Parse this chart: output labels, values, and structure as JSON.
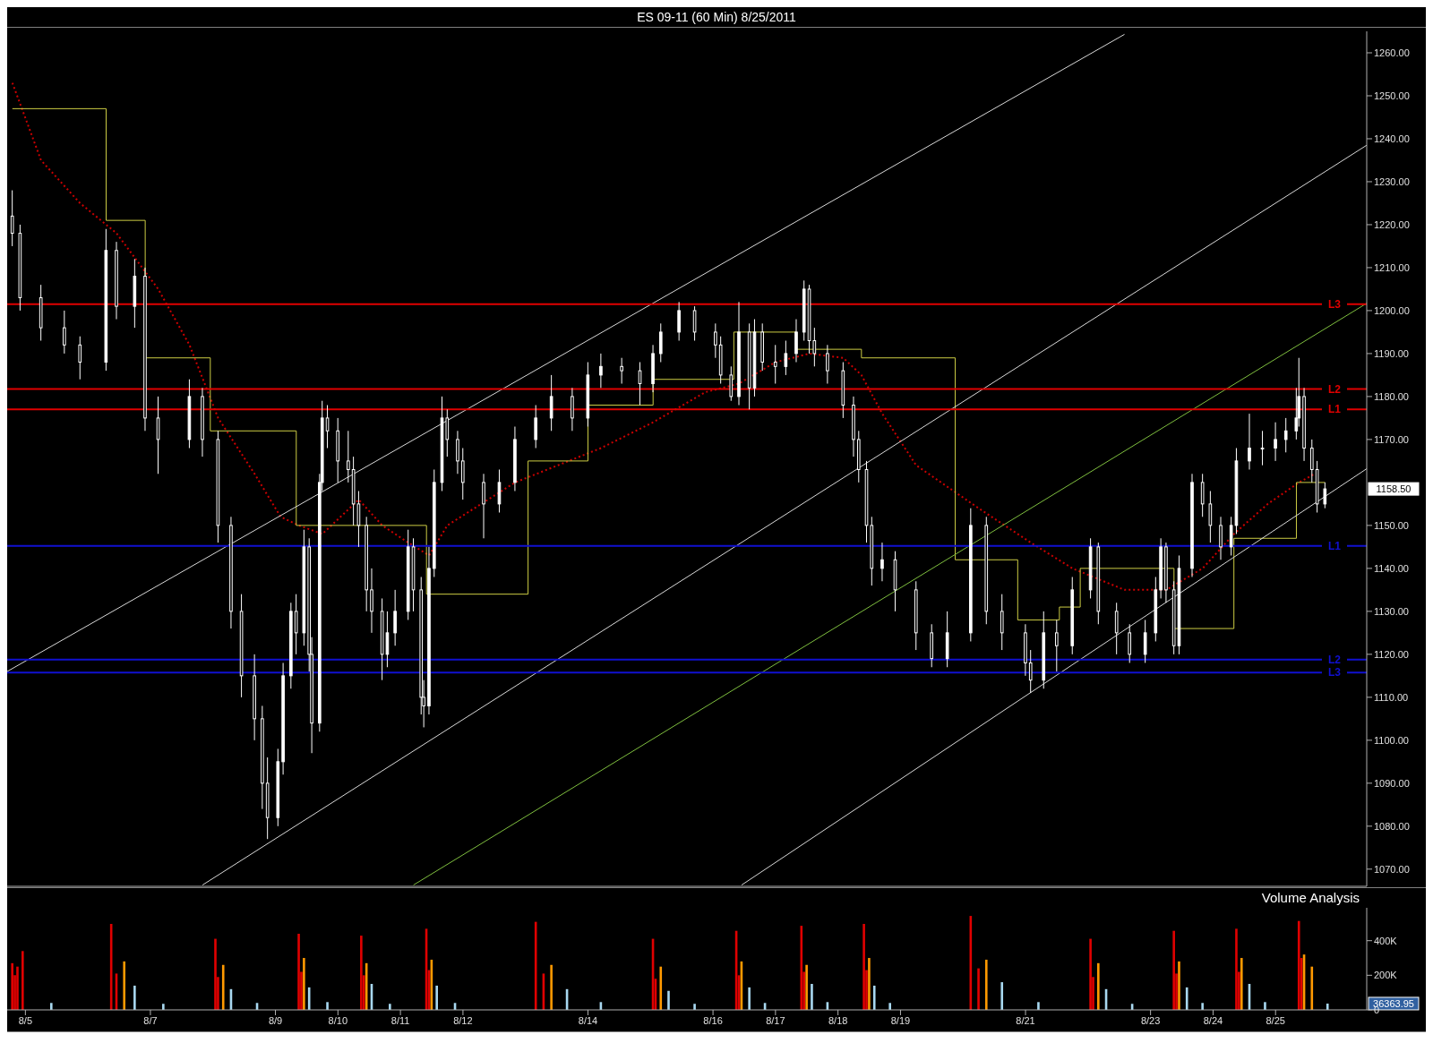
{
  "chart_data": [
    {
      "type": "candlestick",
      "title": "ES 09-11 (60 Min)  8/25/2011",
      "color": "#ffffff",
      "marker": "none",
      "tick_labels": "y",
      "x": [
        "2011-08-04T19:00",
        "2011-08-04T22:00",
        "2011-08-05T06:00",
        "2011-08-05T15:00",
        "2011-08-05T21:00",
        "2011-08-06T07:00",
        "2011-08-06T11:00",
        "2011-08-06T18:00",
        "2011-08-06T22:00",
        "2011-08-07T03:00",
        "2011-08-07T15:00",
        "2011-08-07T20:00",
        "2011-08-08T02:00",
        "2011-08-08T07:00",
        "2011-08-08T11:00",
        "2011-08-08T16:00",
        "2011-08-08T19:00",
        "2011-08-08T21:00",
        "2011-08-09T01:00",
        "2011-08-09T03:00",
        "2011-08-09T06:00",
        "2011-08-09T08:00",
        "2011-08-09T11:00",
        "2011-08-09T13:00",
        "2011-08-09T14:00",
        "2011-08-09T17:00",
        "2011-08-09T18:00",
        "2011-08-09T20:00",
        "2011-08-10T00:00",
        "2011-08-10T04:00",
        "2011-08-10T06:00",
        "2011-08-10T08:00",
        "2011-08-10T11:00",
        "2011-08-10T13:00",
        "2011-08-10T17:00",
        "2011-08-10T19:00",
        "2011-08-10T22:00",
        "2011-08-11T03:00",
        "2011-08-11T05:00",
        "2011-08-11T08:00",
        "2011-08-11T09:00",
        "2011-08-11T11:00",
        "2011-08-11T13:00",
        "2011-08-11T16:00",
        "2011-08-11T18:00",
        "2011-08-11T22:00",
        "2011-08-12T00:00",
        "2011-08-12T08:00",
        "2011-08-12T14:00",
        "2011-08-12T20:00",
        "2011-08-13T04:00",
        "2011-08-13T10:00",
        "2011-08-13T18:00",
        "2011-08-14T00:00",
        "2011-08-14T05:00",
        "2011-08-14T13:00",
        "2011-08-14T20:00",
        "2011-08-15T01:00",
        "2011-08-15T04:00",
        "2011-08-15T11:00",
        "2011-08-15T17:00",
        "2011-08-16T01:00",
        "2011-08-16T03:00",
        "2011-08-16T07:00",
        "2011-08-16T10:00",
        "2011-08-16T14:00",
        "2011-08-16T16:00",
        "2011-08-16T19:00",
        "2011-08-17T00:00",
        "2011-08-17T04:00",
        "2011-08-17T08:00",
        "2011-08-17T11:00",
        "2011-08-17T13:00",
        "2011-08-17T15:00",
        "2011-08-17T20:00",
        "2011-08-18T02:00",
        "2011-08-18T06:00",
        "2011-08-18T08:00",
        "2011-08-18T11:00",
        "2011-08-18T13:00",
        "2011-08-18T17:00",
        "2011-08-18T22:00",
        "2011-08-19T06:00",
        "2011-08-19T12:00",
        "2011-08-19T18:00",
        "2011-08-20T03:00",
        "2011-08-20T09:00",
        "2011-08-20T15:00",
        "2011-08-21T00:00",
        "2011-08-21T02:00",
        "2011-08-21T07:00",
        "2011-08-21T12:00",
        "2011-08-21T18:00",
        "2011-08-22T01:00",
        "2011-08-22T04:00",
        "2011-08-22T11:00",
        "2011-08-22T16:00",
        "2011-08-22T22:00",
        "2011-08-23T02:00",
        "2011-08-23T04:00",
        "2011-08-23T06:00",
        "2011-08-23T09:00",
        "2011-08-23T11:00",
        "2011-08-23T16:00",
        "2011-08-23T20:00",
        "2011-08-23T23:00",
        "2011-08-24T03:00",
        "2011-08-24T07:00",
        "2011-08-24T09:00",
        "2011-08-24T14:00",
        "2011-08-24T19:00",
        "2011-08-25T00:00",
        "2011-08-25T04:00",
        "2011-08-25T08:00",
        "2011-08-25T09:00",
        "2011-08-25T11:00",
        "2011-08-25T14:00",
        "2011-08-25T16:00",
        "2011-08-25T19:00"
      ],
      "ohlc": [
        [
          1222,
          1228,
          1215,
          1218
        ],
        [
          1218,
          1220,
          1200,
          1203
        ],
        [
          1203,
          1206,
          1193,
          1196
        ],
        [
          1196,
          1200,
          1190,
          1192
        ],
        [
          1192,
          1194,
          1184,
          1188
        ],
        [
          1188,
          1219,
          1186,
          1214
        ],
        [
          1214,
          1216,
          1198,
          1201
        ],
        [
          1201,
          1212,
          1196,
          1208
        ],
        [
          1208,
          1210,
          1172,
          1175
        ],
        [
          1175,
          1180,
          1162,
          1170
        ],
        [
          1170,
          1184,
          1168,
          1180
        ],
        [
          1180,
          1182,
          1166,
          1170
        ],
        [
          1170,
          1172,
          1146,
          1150
        ],
        [
          1150,
          1152,
          1126,
          1130
        ],
        [
          1130,
          1134,
          1110,
          1115
        ],
        [
          1115,
          1120,
          1100,
          1105
        ],
        [
          1105,
          1108,
          1084,
          1090
        ],
        [
          1090,
          1096,
          1077,
          1082
        ],
        [
          1082,
          1098,
          1080,
          1095
        ],
        [
          1095,
          1118,
          1092,
          1115
        ],
        [
          1115,
          1132,
          1112,
          1130
        ],
        [
          1130,
          1134,
          1120,
          1125
        ],
        [
          1125,
          1149,
          1122,
          1145
        ],
        [
          1145,
          1147,
          1116,
          1120
        ],
        [
          1120,
          1124,
          1097,
          1104
        ],
        [
          1104,
          1162,
          1102,
          1160
        ],
        [
          1160,
          1179,
          1158,
          1175
        ],
        [
          1175,
          1178,
          1168,
          1172
        ],
        [
          1172,
          1175,
          1160,
          1165
        ],
        [
          1165,
          1172,
          1160,
          1163
        ],
        [
          1163,
          1166,
          1150,
          1155
        ],
        [
          1155,
          1158,
          1145,
          1150
        ],
        [
          1150,
          1152,
          1130,
          1135
        ],
        [
          1135,
          1140,
          1125,
          1130
        ],
        [
          1130,
          1133,
          1114,
          1120
        ],
        [
          1120,
          1130,
          1117,
          1125
        ],
        [
          1125,
          1135,
          1122,
          1130
        ],
        [
          1130,
          1149,
          1128,
          1145
        ],
        [
          1145,
          1147,
          1130,
          1135
        ],
        [
          1135,
          1138,
          1106,
          1110
        ],
        [
          1110,
          1114,
          1103,
          1108
        ],
        [
          1108,
          1145,
          1106,
          1140
        ],
        [
          1140,
          1163,
          1138,
          1160
        ],
        [
          1160,
          1180,
          1158,
          1175
        ],
        [
          1175,
          1177,
          1166,
          1170
        ],
        [
          1170,
          1172,
          1162,
          1165
        ],
        [
          1165,
          1168,
          1156,
          1160
        ],
        [
          1160,
          1162,
          1147,
          1155
        ],
        [
          1155,
          1163,
          1153,
          1160
        ],
        [
          1160,
          1173,
          1158,
          1170
        ],
        [
          1170,
          1178,
          1168,
          1175
        ],
        [
          1175,
          1185,
          1172,
          1180
        ],
        [
          1180,
          1182,
          1172,
          1175
        ],
        [
          1175,
          1188,
          1173,
          1185
        ],
        [
          1185,
          1190,
          1182,
          1187
        ],
        [
          1187,
          1189,
          1183,
          1186
        ],
        [
          1186,
          1188,
          1178,
          1183
        ],
        [
          1183,
          1192,
          1181,
          1190
        ],
        [
          1190,
          1197,
          1188,
          1195
        ],
        [
          1195,
          1202,
          1193,
          1200
        ],
        [
          1200,
          1201,
          1193,
          1195
        ],
        [
          1195,
          1197,
          1189,
          1192
        ],
        [
          1192,
          1194,
          1183,
          1185
        ],
        [
          1185,
          1187,
          1179,
          1180
        ],
        [
          1180,
          1202,
          1178,
          1195
        ],
        [
          1195,
          1197,
          1177,
          1182
        ],
        [
          1182,
          1198,
          1180,
          1195
        ],
        [
          1195,
          1197,
          1186,
          1188
        ],
        [
          1188,
          1192,
          1183,
          1187
        ],
        [
          1187,
          1193,
          1185,
          1190
        ],
        [
          1190,
          1198,
          1188,
          1195
        ],
        [
          1195,
          1207,
          1193,
          1205
        ],
        [
          1205,
          1206,
          1190,
          1193
        ],
        [
          1193,
          1196,
          1187,
          1190
        ],
        [
          1190,
          1192,
          1183,
          1186
        ],
        [
          1186,
          1188,
          1175,
          1178
        ],
        [
          1178,
          1180,
          1166,
          1170
        ],
        [
          1170,
          1172,
          1160,
          1163
        ],
        [
          1163,
          1165,
          1146,
          1150
        ],
        [
          1150,
          1152,
          1136,
          1140
        ],
        [
          1140,
          1146,
          1137,
          1142
        ],
        [
          1142,
          1144,
          1130,
          1135
        ],
        [
          1135,
          1137,
          1121,
          1125
        ],
        [
          1125,
          1127,
          1117,
          1119
        ],
        [
          1119,
          1130,
          1117,
          1125
        ],
        [
          1125,
          1154,
          1123,
          1150
        ],
        [
          1150,
          1152,
          1127,
          1130
        ],
        [
          1130,
          1134,
          1121,
          1125
        ],
        [
          1125,
          1127,
          1115,
          1118
        ],
        [
          1118,
          1121,
          1111,
          1114
        ],
        [
          1114,
          1130,
          1112,
          1125
        ],
        [
          1125,
          1128,
          1116,
          1122
        ],
        [
          1122,
          1138,
          1120,
          1135
        ],
        [
          1135,
          1147,
          1133,
          1145
        ],
        [
          1145,
          1146,
          1127,
          1130
        ],
        [
          1130,
          1132,
          1120,
          1125
        ],
        [
          1125,
          1127,
          1118,
          1120
        ],
        [
          1120,
          1128,
          1118,
          1125
        ],
        [
          1125,
          1138,
          1123,
          1135
        ],
        [
          1135,
          1147,
          1133,
          1145
        ],
        [
          1145,
          1146,
          1132,
          1135
        ],
        [
          1135,
          1137,
          1120,
          1122
        ],
        [
          1122,
          1143,
          1120,
          1140
        ],
        [
          1140,
          1162,
          1138,
          1160
        ],
        [
          1160,
          1162,
          1152,
          1155
        ],
        [
          1155,
          1158,
          1146,
          1150
        ],
        [
          1150,
          1152,
          1142,
          1145
        ],
        [
          1145,
          1152,
          1143,
          1150
        ],
        [
          1150,
          1168,
          1148,
          1165
        ],
        [
          1165,
          1176,
          1163,
          1168
        ],
        [
          1168,
          1172,
          1164,
          1168
        ],
        [
          1168,
          1174,
          1165,
          1170
        ],
        [
          1170,
          1175,
          1167,
          1172
        ],
        [
          1172,
          1182,
          1170,
          1175
        ],
        [
          1175,
          1189,
          1173,
          1180
        ],
        [
          1180,
          1182,
          1165,
          1168
        ],
        [
          1168,
          1170,
          1160,
          1163
        ],
        [
          1163,
          1165,
          1153,
          1155
        ],
        [
          1155,
          1160,
          1154,
          1158.5
        ]
      ],
      "series": [
        {
          "type": "line",
          "color": "#cc0000",
          "line_style": "dotted",
          "x": [
            "2011-08-04T19:00",
            "2011-08-05T06:00",
            "2011-08-05T21:00",
            "2011-08-06T11:00",
            "2011-08-07T03:00",
            "2011-08-07T15:00",
            "2011-08-08T02:00",
            "2011-08-08T16:00",
            "2011-08-09T02:00",
            "2011-08-09T09:00",
            "2011-08-09T18:00",
            "2011-08-10T01:00",
            "2011-08-10T08:00",
            "2011-08-10T17:00",
            "2011-08-11T03:00",
            "2011-08-11T11:00",
            "2011-08-11T18:00",
            "2011-08-12T20:00",
            "2011-08-14T05:00",
            "2011-08-15T01:00",
            "2011-08-15T21:00",
            "2011-08-16T10:00",
            "2011-08-17T00:00",
            "2011-08-17T13:00",
            "2011-08-18T02:00",
            "2011-08-18T09:00",
            "2011-08-18T17:00",
            "2011-08-19T06:00",
            "2011-08-20T06:00",
            "2011-08-21T02:00",
            "2011-08-21T18:00",
            "2011-08-22T14:00",
            "2011-08-23T06:00",
            "2011-08-23T20:00",
            "2011-08-24T08:00",
            "2011-08-24T21:00",
            "2011-08-25T09:00",
            "2011-08-25T15:00"
          ],
          "values": [
            1253,
            1235,
            1225,
            1218,
            1205,
            1192,
            1175,
            1162,
            1152,
            1150,
            1148,
            1152,
            1156,
            1150,
            1146,
            1143,
            1150,
            1160,
            1168,
            1174,
            1181,
            1183,
            1188,
            1190,
            1189,
            1185,
            1176,
            1164,
            1154,
            1146,
            1140,
            1135,
            1135,
            1140,
            1148,
            1155,
            1160,
            1162
          ]
        },
        {
          "type": "step",
          "color": "#cccc44",
          "line_style": "solid",
          "x": [
            "2011-08-04T19:00",
            "2011-08-06T07:00",
            "2011-08-06T22:00",
            "2011-08-07T23:00",
            "2011-08-09T08:00",
            "2011-08-11T10:00",
            "2011-08-13T01:00",
            "2011-08-14T00:00",
            "2011-08-15T01:00",
            "2011-08-16T08:00",
            "2011-08-17T08:00",
            "2011-08-18T09:00",
            "2011-08-19T21:00",
            "2011-08-20T21:00",
            "2011-08-21T13:00",
            "2011-08-21T21:00",
            "2011-08-23T09:00",
            "2011-08-24T08:00",
            "2011-08-25T08:00",
            "2011-08-25T19:00"
          ],
          "values": [
            1247,
            1221,
            1189,
            1172,
            1150,
            1134,
            1165,
            1178,
            1184,
            1195,
            1191,
            1189,
            1142,
            1128,
            1131,
            1140,
            1126,
            1147,
            1160,
            1160
          ]
        },
        {
          "type": "line",
          "color": "#d8d8d8",
          "line_style": "solid",
          "x": [
            "2011-08-04T17:00",
            "2011-08-22T14:00"
          ],
          "values": [
            1116,
            1264.3
          ]
        },
        {
          "type": "line",
          "color": "#d8d8d8",
          "line_style": "solid",
          "x": [
            "2011-08-07T20:00",
            "2011-08-26T11:00"
          ],
          "values": [
            1066.3,
            1238.5
          ]
        },
        {
          "type": "line",
          "color": "#d8d8d8",
          "line_style": "solid",
          "x": [
            "2011-08-16T11:00",
            "2011-08-26T11:00"
          ],
          "values": [
            1066.3,
            1163.2
          ]
        },
        {
          "type": "line",
          "color": "#7fbf3f",
          "line_style": "solid",
          "x": [
            "2011-08-11T05:00",
            "2011-08-26T11:00"
          ],
          "values": [
            1066.3,
            1201.7
          ]
        }
      ],
      "ref_lines": [
        {
          "axis": "y",
          "value": 1201.5,
          "label": "L3",
          "color": "#e00000"
        },
        {
          "axis": "y",
          "value": 1181.75,
          "label": "L2",
          "color": "#e00000"
        },
        {
          "axis": "y",
          "value": 1177,
          "label": "L1",
          "color": "#e00000"
        },
        {
          "axis": "y",
          "value": 1145.25,
          "label": "L1",
          "color": "#1010d0"
        },
        {
          "axis": "y",
          "value": 1118.75,
          "label": "L2",
          "color": "#1010d0"
        },
        {
          "axis": "y",
          "value": 1115.75,
          "label": "L3",
          "color": "#1010d0"
        }
      ],
      "annotations": [
        "1158.50"
      ],
      "xlim": [
        "2011-08-04T17:00",
        "2011-08-26T11:00"
      ],
      "ylim": [
        1066,
        1265
      ],
      "yticks": [
        {
          "value": 1070,
          "label": "1070.00"
        },
        {
          "value": 1080,
          "label": "1080.00"
        },
        {
          "value": 1090,
          "label": "1090.00"
        },
        {
          "value": 1100,
          "label": "1100.00"
        },
        {
          "value": 1110,
          "label": "1110.00"
        },
        {
          "value": 1120,
          "label": "1120.00"
        },
        {
          "value": 1130,
          "label": "1130.00"
        },
        {
          "value": 1140,
          "label": "1140.00"
        },
        {
          "value": 1150,
          "label": "1150.00"
        },
        {
          "value": 1170,
          "label": "1170.00"
        },
        {
          "value": 1180,
          "label": "1180.00"
        },
        {
          "value": 1190,
          "label": "1190.00"
        },
        {
          "value": 1200,
          "label": "1200.00"
        },
        {
          "value": 1210,
          "label": "1210.00"
        },
        {
          "value": 1220,
          "label": "1220.00"
        },
        {
          "value": 1230,
          "label": "1230.00"
        },
        {
          "value": 1240,
          "label": "1240.00"
        },
        {
          "value": 1250,
          "label": "1250.00"
        },
        {
          "value": 1260,
          "label": "1260.00"
        }
      ]
    },
    {
      "type": "bar",
      "x": [
        "2011-08-04T19:00",
        "2011-08-04T20:00",
        "2011-08-04T21:00",
        "2011-08-04T23:00",
        "2011-08-05T10:00",
        "2011-08-06T09:00",
        "2011-08-06T11:00",
        "2011-08-06T14:00",
        "2011-08-06T18:00",
        "2011-08-07T05:00",
        "2011-08-08T01:00",
        "2011-08-08T02:00",
        "2011-08-08T04:00",
        "2011-08-08T07:00",
        "2011-08-08T17:00",
        "2011-08-09T09:00",
        "2011-08-09T10:00",
        "2011-08-09T11:00",
        "2011-08-09T13:00",
        "2011-08-09T20:00",
        "2011-08-10T09:00",
        "2011-08-10T10:00",
        "2011-08-10T11:00",
        "2011-08-10T13:00",
        "2011-08-10T20:00",
        "2011-08-11T10:00",
        "2011-08-11T11:00",
        "2011-08-11T12:00",
        "2011-08-11T14:00",
        "2011-08-11T21:00",
        "2011-08-13T04:00",
        "2011-08-13T07:00",
        "2011-08-13T10:00",
        "2011-08-13T16:00",
        "2011-08-14T05:00",
        "2011-08-15T01:00",
        "2011-08-15T02:00",
        "2011-08-15T04:00",
        "2011-08-15T07:00",
        "2011-08-15T17:00",
        "2011-08-16T09:00",
        "2011-08-16T10:00",
        "2011-08-16T11:00",
        "2011-08-16T14:00",
        "2011-08-16T20:00",
        "2011-08-17T10:00",
        "2011-08-17T11:00",
        "2011-08-17T12:00",
        "2011-08-17T14:00",
        "2011-08-17T20:00",
        "2011-08-18T10:00",
        "2011-08-18T11:00",
        "2011-08-18T12:00",
        "2011-08-18T14:00",
        "2011-08-18T20:00",
        "2011-08-20T03:00",
        "2011-08-20T06:00",
        "2011-08-20T09:00",
        "2011-08-20T15:00",
        "2011-08-21T05:00",
        "2011-08-22T01:00",
        "2011-08-22T02:00",
        "2011-08-22T04:00",
        "2011-08-22T07:00",
        "2011-08-22T17:00",
        "2011-08-23T09:00",
        "2011-08-23T10:00",
        "2011-08-23T11:00",
        "2011-08-23T14:00",
        "2011-08-23T20:00",
        "2011-08-24T09:00",
        "2011-08-24T10:00",
        "2011-08-24T11:00",
        "2011-08-24T14:00",
        "2011-08-24T20:00",
        "2011-08-25T09:00",
        "2011-08-25T10:00",
        "2011-08-25T11:00",
        "2011-08-25T14:00",
        "2011-08-25T20:00"
      ],
      "values": [
        270000,
        200000,
        250000,
        340000,
        40000,
        497000,
        210000,
        280000,
        140000,
        35000,
        411000,
        190000,
        260000,
        120000,
        40000,
        440000,
        220000,
        300000,
        130000,
        45000,
        429000,
        200000,
        270000,
        150000,
        35000,
        469000,
        230000,
        290000,
        140000,
        40000,
        509000,
        210000,
        260000,
        120000,
        45000,
        411000,
        180000,
        250000,
        110000,
        35000,
        457000,
        200000,
        280000,
        130000,
        40000,
        486000,
        220000,
        260000,
        150000,
        45000,
        497000,
        230000,
        300000,
        140000,
        40000,
        543000,
        240000,
        290000,
        160000,
        45000,
        411000,
        190000,
        270000,
        120000,
        35000,
        457000,
        210000,
        280000,
        130000,
        40000,
        469000,
        220000,
        300000,
        150000,
        45000,
        514000,
        300000,
        320000,
        250000,
        36363.95
      ],
      "colors": [
        "#e00000",
        "#e00000",
        "#e00000",
        "#e00000",
        "#a8d8f0",
        "#e00000",
        "#e00000",
        "#ff9900",
        "#a8d8f0",
        "#a8d8f0",
        "#e00000",
        "#e00000",
        "#ff9900",
        "#a8d8f0",
        "#a8d8f0",
        "#e00000",
        "#e00000",
        "#ff9900",
        "#a8d8f0",
        "#a8d8f0",
        "#e00000",
        "#e00000",
        "#ff9900",
        "#a8d8f0",
        "#a8d8f0",
        "#e00000",
        "#e00000",
        "#ff9900",
        "#a8d8f0",
        "#a8d8f0",
        "#e00000",
        "#e00000",
        "#ff9900",
        "#a8d8f0",
        "#a8d8f0",
        "#e00000",
        "#e00000",
        "#ff9900",
        "#a8d8f0",
        "#a8d8f0",
        "#e00000",
        "#e00000",
        "#ff9900",
        "#a8d8f0",
        "#a8d8f0",
        "#e00000",
        "#e00000",
        "#ff9900",
        "#a8d8f0",
        "#a8d8f0",
        "#e00000",
        "#e00000",
        "#ff9900",
        "#a8d8f0",
        "#a8d8f0",
        "#e00000",
        "#e00000",
        "#ff9900",
        "#a8d8f0",
        "#a8d8f0",
        "#e00000",
        "#e00000",
        "#ff9900",
        "#a8d8f0",
        "#a8d8f0",
        "#e00000",
        "#e00000",
        "#ff9900",
        "#a8d8f0",
        "#a8d8f0",
        "#e00000",
        "#e00000",
        "#ff9900",
        "#a8d8f0",
        "#a8d8f0",
        "#e00000",
        "#e00000",
        "#ff9900",
        "#ff9900",
        "#a8d8f0"
      ],
      "annotations": [
        "Volume Analysis",
        "36363.95"
      ],
      "xlim": [
        "2011-08-04T17:00",
        "2011-08-26T11:00"
      ],
      "ylim": [
        0,
        590000
      ],
      "xticks": [
        {
          "value": "2011-08-05",
          "label": "8/5"
        },
        {
          "value": "2011-08-07",
          "label": "8/7"
        },
        {
          "value": "2011-08-09",
          "label": "8/9"
        },
        {
          "value": "2011-08-10",
          "label": "8/10"
        },
        {
          "value": "2011-08-11",
          "label": "8/11"
        },
        {
          "value": "2011-08-12",
          "label": "8/12"
        },
        {
          "value": "2011-08-14",
          "label": "8/14"
        },
        {
          "value": "2011-08-16",
          "label": "8/16"
        },
        {
          "value": "2011-08-17",
          "label": "8/17"
        },
        {
          "value": "2011-08-18",
          "label": "8/18"
        },
        {
          "value": "2011-08-19",
          "label": "8/19"
        },
        {
          "value": "2011-08-21",
          "label": "8/21"
        },
        {
          "value": "2011-08-23",
          "label": "8/23"
        },
        {
          "value": "2011-08-24",
          "label": "8/24"
        },
        {
          "value": "2011-08-25",
          "label": "8/25"
        }
      ],
      "yticks": [
        {
          "value": 0,
          "label": "0"
        },
        {
          "value": 200000,
          "label": "200K"
        },
        {
          "value": 400000,
          "label": "400K"
        }
      ]
    }
  ]
}
